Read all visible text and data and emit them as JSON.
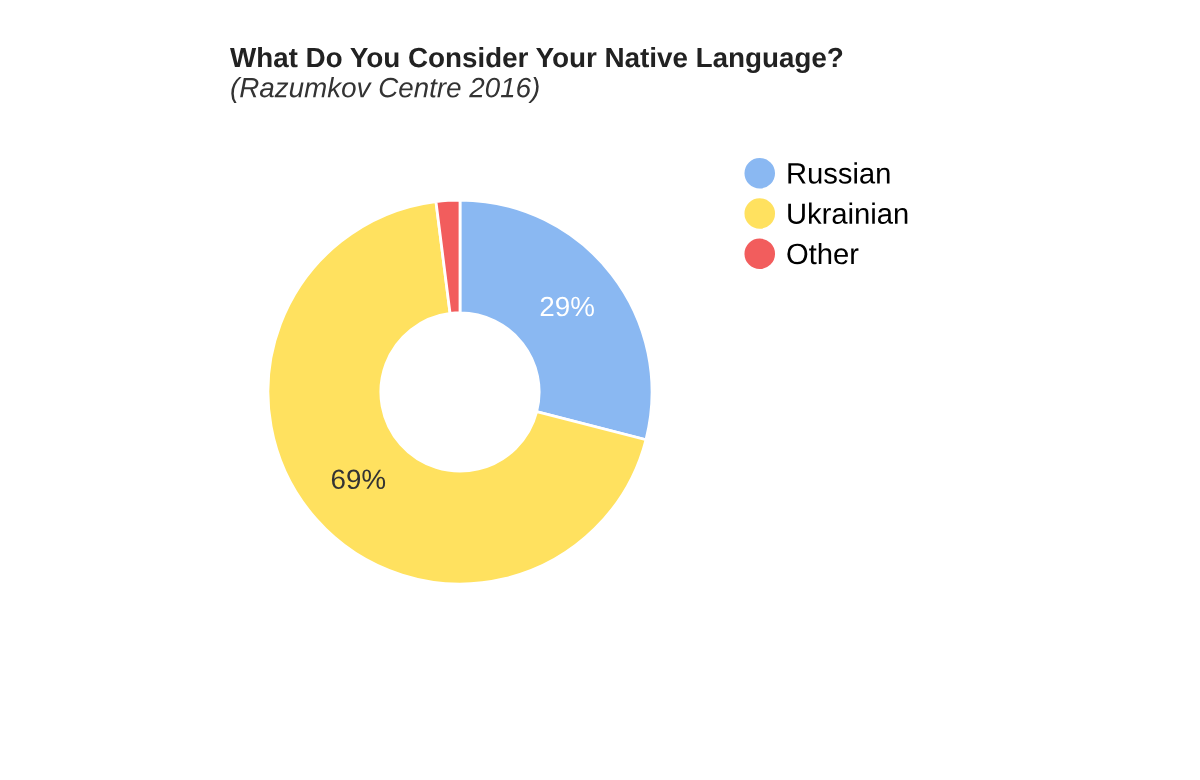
{
  "chart_data": {
    "type": "donut",
    "title": "What Do You Consider Your Native Language?",
    "subtitle": "(Razumkov Centre 2016)",
    "categories": [
      "Russian",
      "Ukrainian",
      "Other"
    ],
    "values": [
      29,
      69,
      2
    ],
    "colors": [
      "#8ab8f2",
      "#ffe15f",
      "#f25d5d"
    ],
    "value_labels": [
      "29%",
      "69%",
      null
    ],
    "legend": "right"
  }
}
